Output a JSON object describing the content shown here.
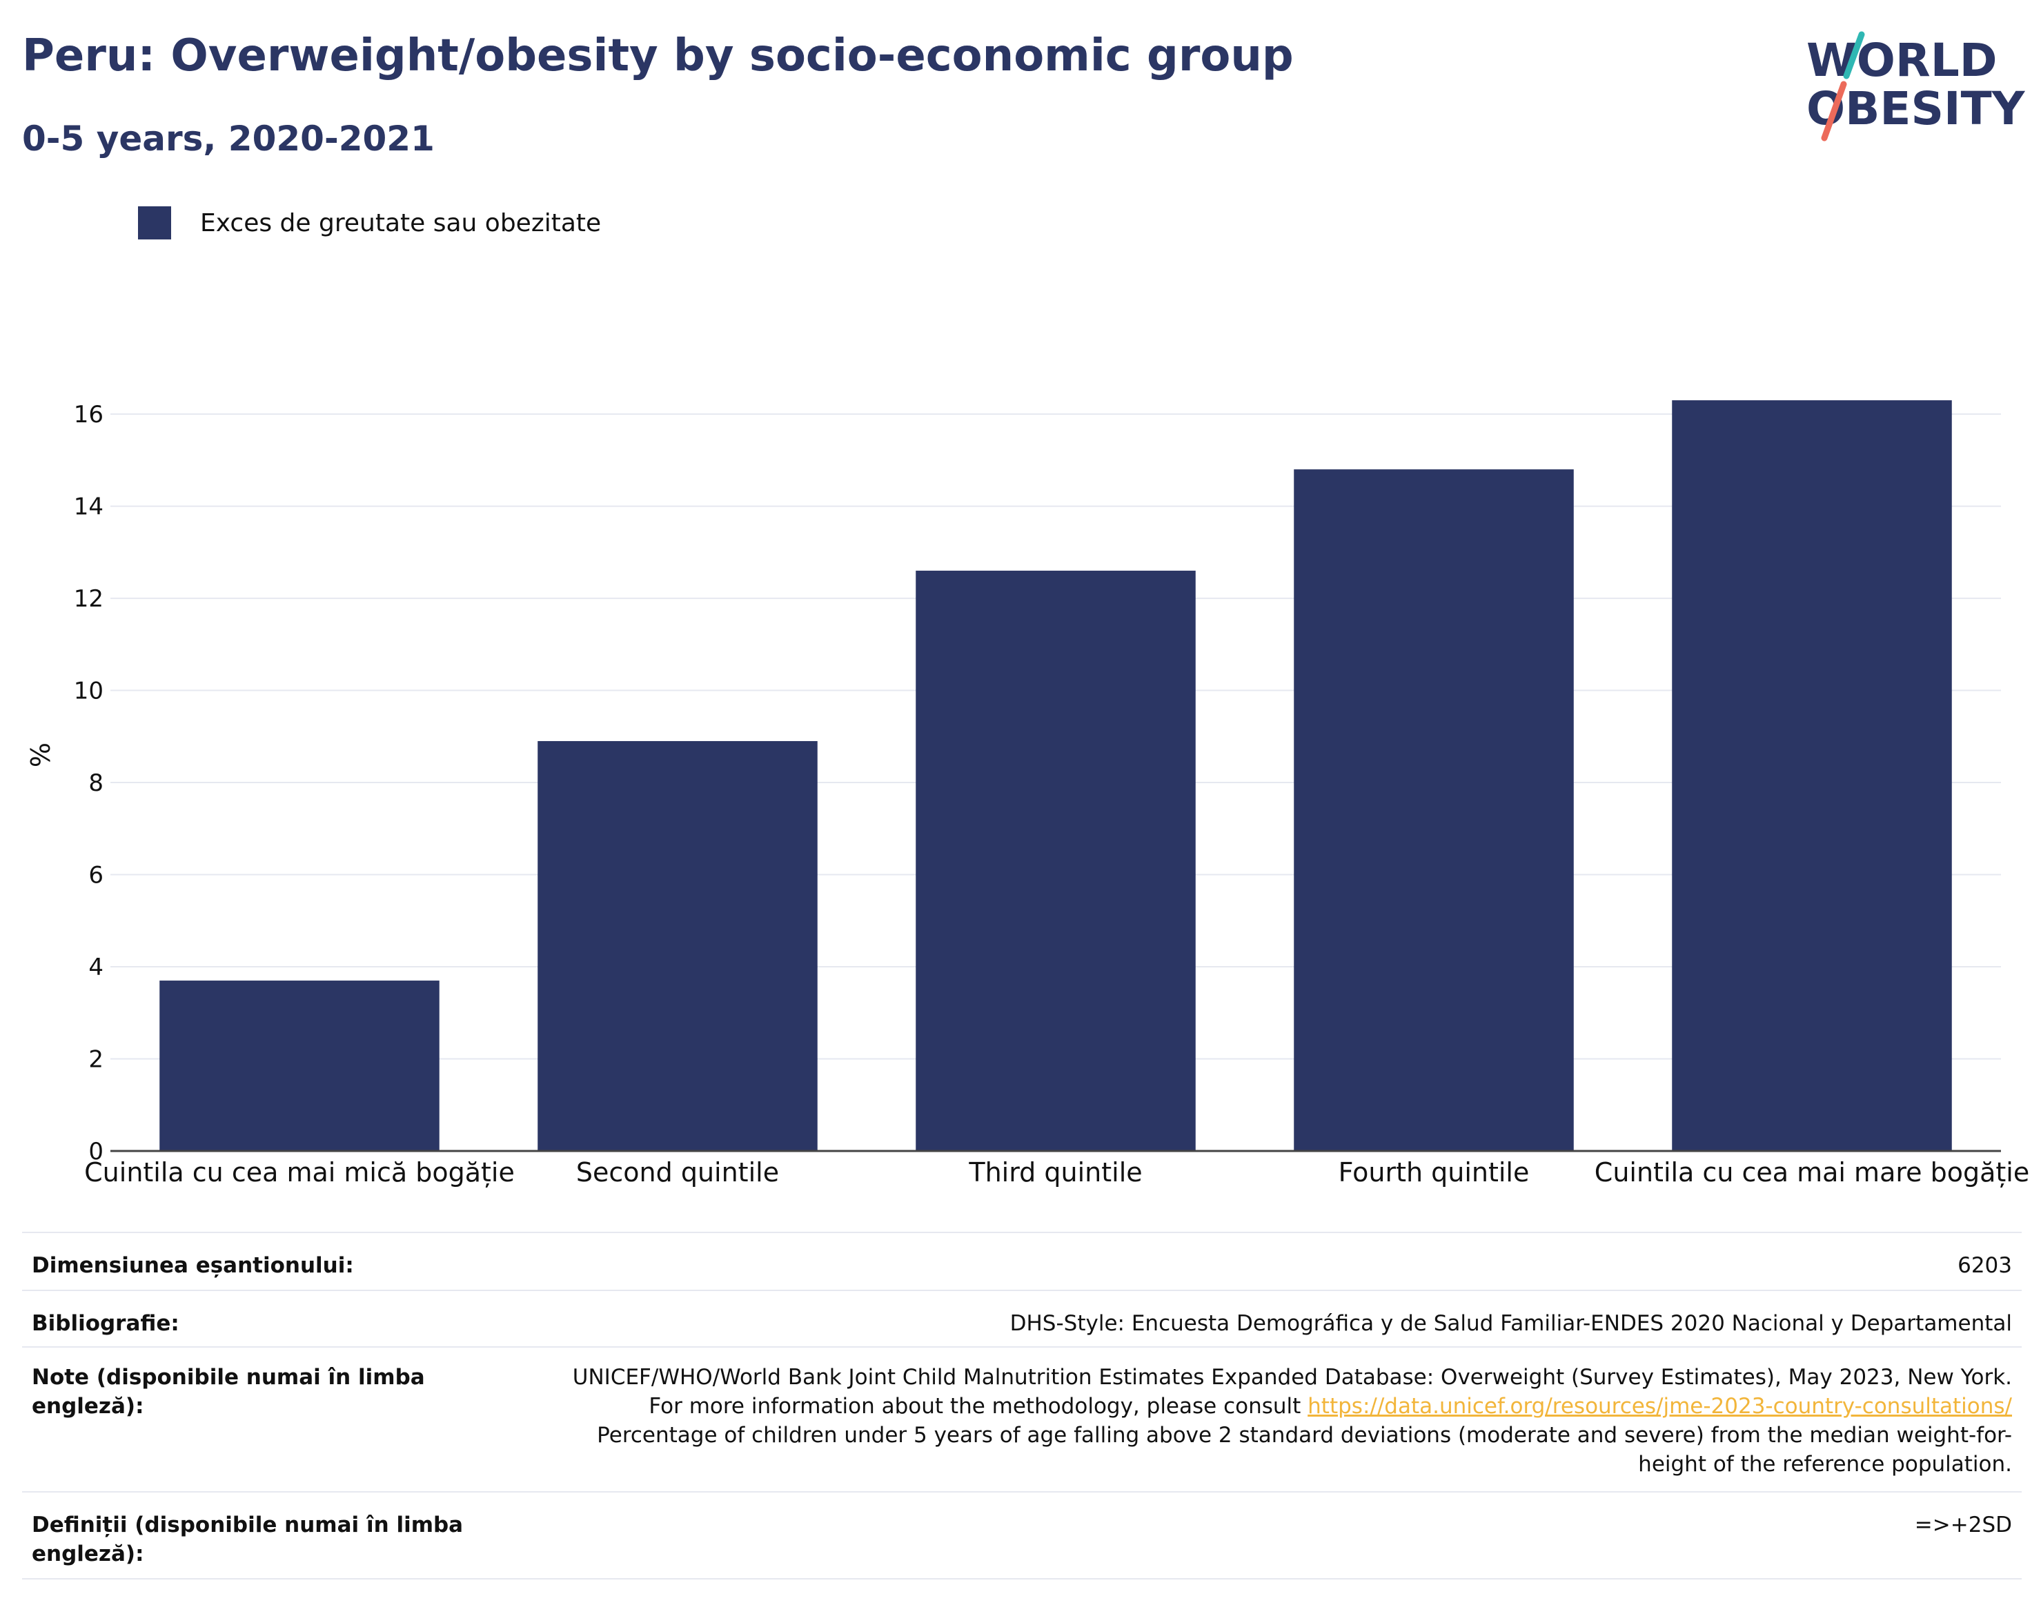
{
  "header": {
    "title": "Peru: Overweight/obesity by socio-economic group",
    "subtitle": "0-5 years, 2020-2021"
  },
  "logo": {
    "line1": "WORLD",
    "line2": "OBESITY",
    "accent_teal": "#2fb7b3",
    "accent_coral": "#ec6a5a",
    "text_color": "#2b3664"
  },
  "legend": {
    "label": "Exces de greutate sau obezitate",
    "color": "#2b3664"
  },
  "chart_data": {
    "type": "bar",
    "categories": [
      "Cuintila cu cea mai mică bogăție",
      "Second quintile",
      "Third quintile",
      "Fourth quintile",
      "Cuintila cu cea mai mare bogăție"
    ],
    "series": [
      {
        "name": "Exces de greutate sau obezitate",
        "values": [
          3.7,
          8.9,
          12.6,
          14.8,
          16.3
        ],
        "color": "#2b3664"
      }
    ],
    "ylabel": "%",
    "ylim": [
      0,
      17.2
    ],
    "yticks": [
      0,
      2,
      4,
      6,
      8,
      10,
      12,
      14,
      16
    ],
    "grid": true
  },
  "table": {
    "rows": [
      {
        "label": "Dimensiunea eșantionului:",
        "value": "6203"
      },
      {
        "label": "Bibliografie:",
        "value": "DHS-Style: Encuesta Demográfica y de Salud Familiar-ENDES 2020 Nacional y Departamental"
      },
      {
        "label": "Note (disponibile numai în limba engleză):",
        "value_before": "UNICEF/WHO/World Bank Joint Child Malnutrition Estimates Expanded Database: Overweight (Survey Estimates), May 2023, New York. For more information about the methodology, please consult ",
        "link": "https://data.unicef.org/resources/jme-2023-country-consultations/",
        "value_after": " Percentage of children under 5 years of age falling above 2 standard deviations (moderate and severe) from the median weight-for-height of the reference population."
      },
      {
        "label": "Definiții (disponibile numai în limba engleză):",
        "value": "=>+2SD"
      }
    ]
  }
}
